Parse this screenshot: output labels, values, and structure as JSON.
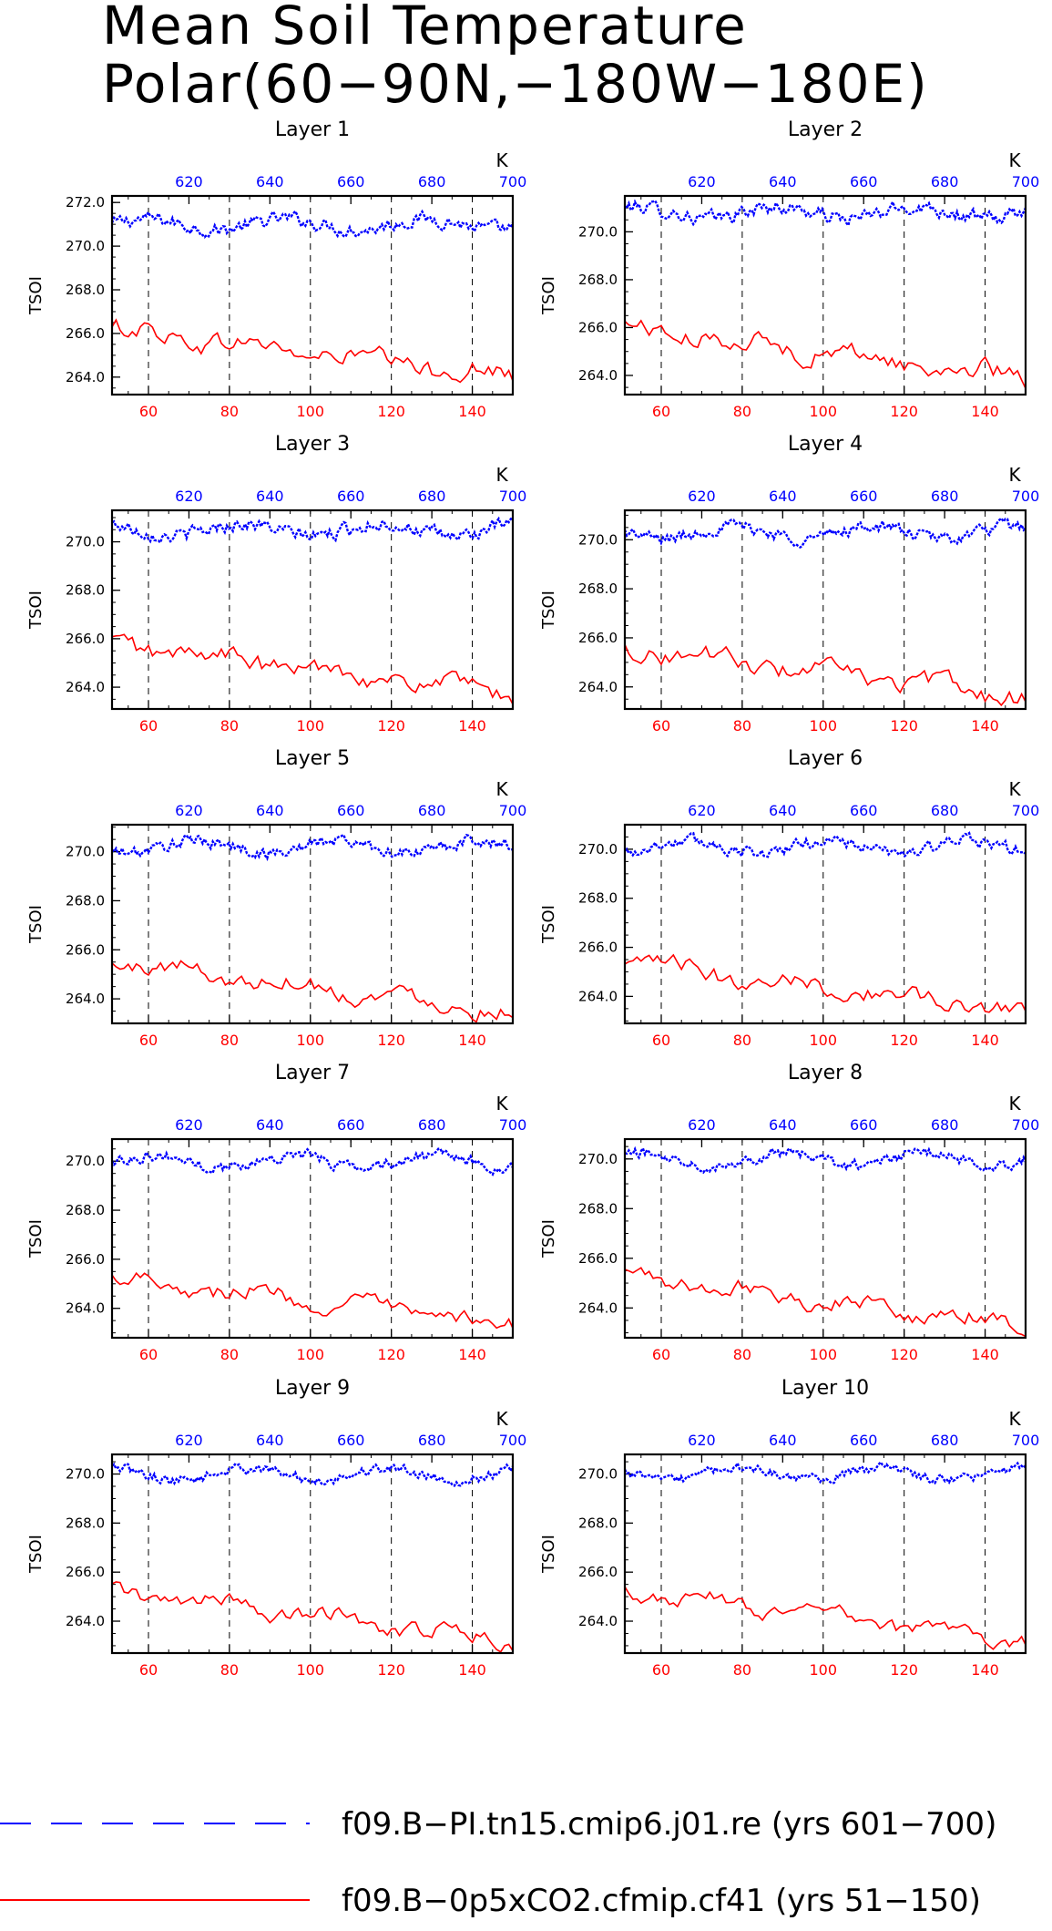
{
  "title": [
    "Mean Soil Temperature",
    "Polar(60−90N,−180W−180E)"
  ],
  "colors": {
    "blue": "#0000ff",
    "red": "#ff0000",
    "axes": "#000000"
  },
  "legend": [
    {
      "label": "f09.B−PI.tn15.cmip6.j01.re (yrs 601−700)",
      "color": "#0000ff",
      "style": "dashed"
    },
    {
      "label": "f09.B−0p5xCO2.cfmip.cf41 (yrs 51−150)",
      "color": "#ff0000",
      "style": "solid"
    }
  ],
  "chart_data": [
    {
      "type": "line",
      "title": "Layer 1",
      "ylabel": "TSOI",
      "top_axis_unit": "K",
      "x_bottom": {
        "range": [
          51,
          150
        ],
        "ticks": [
          "60",
          "80",
          "100",
          "120",
          "140"
        ]
      },
      "x_top": {
        "range": [
          601,
          700
        ],
        "ticks": [
          "620",
          "640",
          "660",
          "680",
          "700"
        ]
      },
      "ylim": [
        263.2,
        272.3
      ],
      "yticks": [
        "264.0",
        "266.0",
        "268.0",
        "270.0",
        "272.0"
      ],
      "series": [
        {
          "color": "#0000ff",
          "mean": 271.0,
          "noise": 0.32
        },
        {
          "color": "#ff0000",
          "start": 266.2,
          "end": 264.0,
          "noise": 0.45
        }
      ]
    },
    {
      "type": "line",
      "title": "Layer 2",
      "ylabel": "TSOI",
      "top_axis_unit": "K",
      "x_bottom": {
        "range": [
          51,
          150
        ],
        "ticks": [
          "60",
          "80",
          "100",
          "120",
          "140"
        ]
      },
      "x_top": {
        "range": [
          601,
          700
        ],
        "ticks": [
          "620",
          "640",
          "660",
          "680",
          "700"
        ]
      },
      "ylim": [
        263.2,
        271.5
      ],
      "yticks": [
        "264.0",
        "266.0",
        "268.0",
        "270.0"
      ],
      "series": [
        {
          "color": "#0000ff",
          "mean": 270.8,
          "noise": 0.3
        },
        {
          "color": "#ff0000",
          "start": 266.0,
          "end": 263.9,
          "noise": 0.42
        }
      ]
    },
    {
      "type": "line",
      "title": "Layer 3",
      "ylabel": "TSOI",
      "top_axis_unit": "K",
      "x_bottom": {
        "range": [
          51,
          150
        ],
        "ticks": [
          "60",
          "80",
          "100",
          "120",
          "140"
        ]
      },
      "x_top": {
        "range": [
          601,
          700
        ],
        "ticks": [
          "620",
          "640",
          "660",
          "680",
          "700"
        ]
      },
      "ylim": [
        263.1,
        271.3
      ],
      "yticks": [
        "264.0",
        "266.0",
        "268.0",
        "270.0"
      ],
      "series": [
        {
          "color": "#0000ff",
          "mean": 270.5,
          "noise": 0.28
        },
        {
          "color": "#ff0000",
          "start": 265.8,
          "end": 263.7,
          "noise": 0.4
        }
      ]
    },
    {
      "type": "line",
      "title": "Layer 4",
      "ylabel": "TSOI",
      "top_axis_unit": "K",
      "x_bottom": {
        "range": [
          51,
          150
        ],
        "ticks": [
          "60",
          "80",
          "100",
          "120",
          "140"
        ]
      },
      "x_top": {
        "range": [
          601,
          700
        ],
        "ticks": [
          "620",
          "640",
          "660",
          "680",
          "700"
        ]
      },
      "ylim": [
        263.1,
        271.2
      ],
      "yticks": [
        "264.0",
        "266.0",
        "268.0",
        "270.0"
      ],
      "series": [
        {
          "color": "#0000ff",
          "mean": 270.3,
          "noise": 0.26
        },
        {
          "color": "#ff0000",
          "start": 265.6,
          "end": 263.6,
          "noise": 0.38
        }
      ]
    },
    {
      "type": "line",
      "title": "Layer 5",
      "ylabel": "TSOI",
      "top_axis_unit": "K",
      "x_bottom": {
        "range": [
          51,
          150
        ],
        "ticks": [
          "60",
          "80",
          "100",
          "120",
          "140"
        ]
      },
      "x_top": {
        "range": [
          601,
          700
        ],
        "ticks": [
          "620",
          "640",
          "660",
          "680",
          "700"
        ]
      },
      "ylim": [
        263.0,
        271.1
      ],
      "yticks": [
        "264.0",
        "266.0",
        "268.0",
        "270.0"
      ],
      "series": [
        {
          "color": "#0000ff",
          "mean": 270.2,
          "noise": 0.25
        },
        {
          "color": "#ff0000",
          "start": 265.5,
          "end": 263.5,
          "noise": 0.36
        }
      ]
    },
    {
      "type": "line",
      "title": "Layer 6",
      "ylabel": "TSOI",
      "top_axis_unit": "K",
      "x_bottom": {
        "range": [
          51,
          150
        ],
        "ticks": [
          "60",
          "80",
          "100",
          "120",
          "140"
        ]
      },
      "x_top": {
        "range": [
          601,
          700
        ],
        "ticks": [
          "620",
          "640",
          "660",
          "680",
          "700"
        ]
      },
      "ylim": [
        262.9,
        271.0
      ],
      "yticks": [
        "264.0",
        "266.0",
        "268.0",
        "270.0"
      ],
      "series": [
        {
          "color": "#0000ff",
          "mean": 270.1,
          "noise": 0.24
        },
        {
          "color": "#ff0000",
          "start": 265.4,
          "end": 263.4,
          "noise": 0.35
        }
      ]
    },
    {
      "type": "line",
      "title": "Layer 7",
      "ylabel": "TSOI",
      "top_axis_unit": "K",
      "x_bottom": {
        "range": [
          51,
          150
        ],
        "ticks": [
          "60",
          "80",
          "100",
          "120",
          "140"
        ]
      },
      "x_top": {
        "range": [
          601,
          700
        ],
        "ticks": [
          "620",
          "640",
          "660",
          "680",
          "700"
        ]
      },
      "ylim": [
        262.8,
        270.9
      ],
      "yticks": [
        "264.0",
        "266.0",
        "268.0",
        "270.0"
      ],
      "series": [
        {
          "color": "#0000ff",
          "mean": 270.0,
          "noise": 0.23
        },
        {
          "color": "#ff0000",
          "start": 265.3,
          "end": 263.3,
          "noise": 0.34
        }
      ]
    },
    {
      "type": "line",
      "title": "Layer 8",
      "ylabel": "TSOI",
      "top_axis_unit": "K",
      "x_bottom": {
        "range": [
          51,
          150
        ],
        "ticks": [
          "60",
          "80",
          "100",
          "120",
          "140"
        ]
      },
      "x_top": {
        "range": [
          601,
          700
        ],
        "ticks": [
          "620",
          "640",
          "660",
          "680",
          "700"
        ]
      },
      "ylim": [
        262.8,
        270.8
      ],
      "yticks": [
        "264.0",
        "266.0",
        "268.0",
        "270.0"
      ],
      "series": [
        {
          "color": "#0000ff",
          "mean": 270.0,
          "noise": 0.22
        },
        {
          "color": "#ff0000",
          "start": 265.3,
          "end": 263.3,
          "noise": 0.33
        }
      ]
    },
    {
      "type": "line",
      "title": "Layer 9",
      "ylabel": "TSOI",
      "top_axis_unit": "K",
      "x_bottom": {
        "range": [
          51,
          150
        ],
        "ticks": [
          "60",
          "80",
          "100",
          "120",
          "140"
        ]
      },
      "x_top": {
        "range": [
          601,
          700
        ],
        "ticks": [
          "620",
          "640",
          "660",
          "680",
          "700"
        ]
      },
      "ylim": [
        262.7,
        270.8
      ],
      "yticks": [
        "264.0",
        "266.0",
        "268.0",
        "270.0"
      ],
      "series": [
        {
          "color": "#0000ff",
          "mean": 270.0,
          "noise": 0.21
        },
        {
          "color": "#ff0000",
          "start": 265.2,
          "end": 263.2,
          "noise": 0.32
        }
      ]
    },
    {
      "type": "line",
      "title": "Layer 10",
      "ylabel": "TSOI",
      "top_axis_unit": "K",
      "x_bottom": {
        "range": [
          51,
          150
        ],
        "ticks": [
          "60",
          "80",
          "100",
          "120",
          "140"
        ]
      },
      "x_top": {
        "range": [
          601,
          700
        ],
        "ticks": [
          "620",
          "640",
          "660",
          "680",
          "700"
        ]
      },
      "ylim": [
        262.7,
        270.8
      ],
      "yticks": [
        "264.0",
        "266.0",
        "268.0",
        "270.0"
      ],
      "series": [
        {
          "color": "#0000ff",
          "mean": 270.0,
          "noise": 0.2
        },
        {
          "color": "#ff0000",
          "start": 265.2,
          "end": 263.2,
          "noise": 0.31
        }
      ]
    }
  ]
}
